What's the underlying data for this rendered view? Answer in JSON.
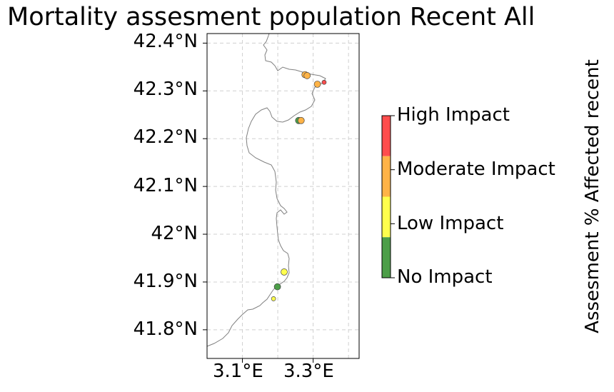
{
  "title": "Mortality assesment population Recent All",
  "map": {
    "lat_ticks": [
      "42.4°N",
      "42.3°N",
      "42.2°N",
      "42.1°N",
      "42°N",
      "41.9°N",
      "41.8°N"
    ],
    "lon_ticks": [
      "3.1°E",
      "3.3°E"
    ],
    "lat_range": [
      41.74,
      42.42
    ],
    "lon_range": [
      3.0,
      3.43
    ],
    "grid": true
  },
  "colorbar": {
    "title": "Assesment % Affected recent",
    "categories": [
      {
        "label": "High Impact",
        "color": "#ff4d4d"
      },
      {
        "label": "Moderate Impact",
        "color": "#ffb347"
      },
      {
        "label": "Low Impact",
        "color": "#ffff4d"
      },
      {
        "label": "No Impact",
        "color": "#4c9e48"
      }
    ]
  },
  "sites": [
    {
      "lon": 3.277,
      "lat": 42.334,
      "impact": "Moderate Impact"
    },
    {
      "lon": 3.283,
      "lat": 42.332,
      "impact": "Moderate Impact"
    },
    {
      "lon": 3.312,
      "lat": 42.314,
      "impact": "Moderate Impact"
    },
    {
      "lon": 3.331,
      "lat": 42.318,
      "impact": "High Impact"
    },
    {
      "lon": 3.259,
      "lat": 42.238,
      "impact": "No Impact"
    },
    {
      "lon": 3.266,
      "lat": 42.238,
      "impact": "Moderate Impact"
    },
    {
      "lon": 3.218,
      "lat": 41.921,
      "impact": "Low Impact"
    },
    {
      "lon": 3.199,
      "lat": 41.89,
      "impact": "No Impact"
    },
    {
      "lon": 3.188,
      "lat": 41.865,
      "impact": "Low Impact"
    }
  ]
}
